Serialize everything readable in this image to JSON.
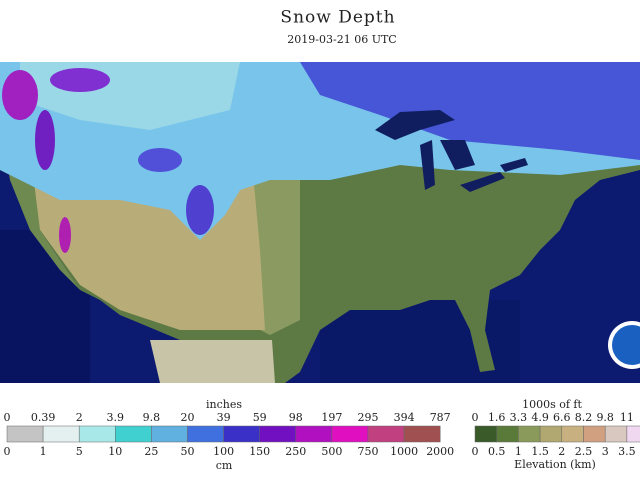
{
  "header": {
    "title": "Snow Depth",
    "subtitle": "2019-03-21 06 UTC"
  },
  "snow_legend": {
    "unit_top": "inches",
    "labels_top": [
      "0",
      "0.39",
      "2",
      "3.9",
      "9.8",
      "20",
      "39",
      "59",
      "98",
      "197",
      "295",
      "394",
      "787"
    ],
    "labels_bottom": [
      "0",
      "1",
      "5",
      "10",
      "25",
      "50",
      "100",
      "150",
      "250",
      "500",
      "750",
      "1000",
      "2000"
    ],
    "unit_bottom": "cm"
  },
  "elevation_legend": {
    "unit_top": "1000s of ft",
    "labels_top": [
      "0",
      "1.6",
      "3.3",
      "4.9",
      "6.6",
      "8.2",
      "9.8",
      "11"
    ],
    "labels_bottom": [
      "0",
      "0.5",
      "1",
      "1.5",
      "2",
      "2.5",
      "3",
      "3.5"
    ],
    "unit_bottom": "Elevation (km)"
  }
}
